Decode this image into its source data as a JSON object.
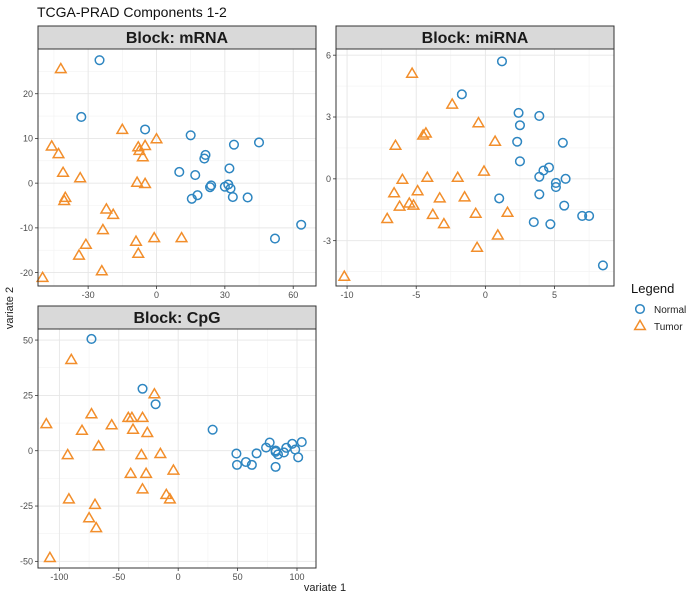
{
  "figure": {
    "title": "TCGA-PRAD Components 1-2",
    "xlabel": "variate 1",
    "ylabel": "variate 2"
  },
  "legend": {
    "title": "Legend",
    "items": [
      {
        "label": "Normal",
        "shape": "circle",
        "color": "#2E86C1"
      },
      {
        "label": "Tumor",
        "shape": "triangle",
        "color": "#F28E2B"
      }
    ]
  },
  "chart_data": [
    {
      "type": "scatter",
      "title": "Block: mRNA",
      "xlim": [
        -52,
        70
      ],
      "ylim": [
        -23,
        30
      ],
      "xticks": [
        -30,
        0,
        30,
        60
      ],
      "yticks": [
        -20,
        -10,
        0,
        10,
        20
      ],
      "grid": true,
      "series": [
        {
          "name": "Normal",
          "points": [
            [
              -25,
              27.5
            ],
            [
              -33,
              14.8
            ],
            [
              -5,
              12
            ],
            [
              15,
              10.7
            ],
            [
              21,
              5.5
            ],
            [
              21.5,
              6.3
            ],
            [
              10,
              2.5
            ],
            [
              17,
              1.8
            ],
            [
              24,
              -0.5
            ],
            [
              23.5,
              -0.9
            ],
            [
              30,
              -0.8
            ],
            [
              31.5,
              -0.3
            ],
            [
              32.5,
              -1.2
            ],
            [
              33.5,
              -3.1
            ],
            [
              18,
              -2.7
            ],
            [
              15.5,
              -3.5
            ],
            [
              32,
              3.3
            ],
            [
              34,
              8.6
            ],
            [
              45,
              9.1
            ],
            [
              40,
              -3.2
            ],
            [
              52,
              -12.4
            ],
            [
              63.5,
              -9.3
            ]
          ]
        },
        {
          "name": "Tumor",
          "points": [
            [
              -42,
              25.5
            ],
            [
              -46,
              8.2
            ],
            [
              -43,
              6.5
            ],
            [
              -41,
              2.3
            ],
            [
              -40,
              -3.3
            ],
            [
              -40.5,
              -4
            ],
            [
              -33.5,
              1.1
            ],
            [
              -15,
              11.9
            ],
            [
              -8,
              8
            ],
            [
              -7.5,
              7.2
            ],
            [
              -6,
              5.8
            ],
            [
              -5,
              -0.2
            ],
            [
              0,
              9.8
            ],
            [
              -8.5,
              0.1
            ],
            [
              -22,
              -5.9
            ],
            [
              -19,
              -7.1
            ],
            [
              -5,
              8.3
            ],
            [
              -1,
              -12.3
            ],
            [
              11,
              -12.3
            ],
            [
              -23.5,
              -10.5
            ],
            [
              -31,
              -13.8
            ],
            [
              -34,
              -16.2
            ],
            [
              -9,
              -13.1
            ],
            [
              -8,
              -15.8
            ],
            [
              -24,
              -19.7
            ],
            [
              -50,
              -21.2
            ]
          ]
        }
      ]
    },
    {
      "type": "scatter",
      "title": "Block: miRNA",
      "xlim": [
        -10.8,
        9.3
      ],
      "ylim": [
        -5.2,
        6.3
      ],
      "xticks": [
        -10,
        -5,
        0,
        5
      ],
      "yticks": [
        -3,
        0,
        3,
        6
      ],
      "grid": true,
      "series": [
        {
          "name": "Normal",
          "points": [
            [
              1.2,
              5.7
            ],
            [
              -1.7,
              4.1
            ],
            [
              2.4,
              3.2
            ],
            [
              2.5,
              2.6
            ],
            [
              3.9,
              3.05
            ],
            [
              2.3,
              1.8
            ],
            [
              5.6,
              1.75
            ],
            [
              2.5,
              0.85
            ],
            [
              4.6,
              0.55
            ],
            [
              4.2,
              0.4
            ],
            [
              3.9,
              0.1
            ],
            [
              5.1,
              -0.2
            ],
            [
              5.1,
              -0.4
            ],
            [
              5.8,
              0
            ],
            [
              3.9,
              -0.75
            ],
            [
              1,
              -0.95
            ],
            [
              5.7,
              -1.3
            ],
            [
              7,
              -1.8
            ],
            [
              7.5,
              -1.8
            ],
            [
              3.5,
              -2.1
            ],
            [
              4.7,
              -2.2
            ],
            [
              8.5,
              -4.2
            ]
          ]
        },
        {
          "name": "Tumor",
          "points": [
            [
              -5.3,
              5.1
            ],
            [
              -2.4,
              3.6
            ],
            [
              -0.5,
              2.7
            ],
            [
              -4.3,
              2.2
            ],
            [
              -4.5,
              2.1
            ],
            [
              0.7,
              1.8
            ],
            [
              -6.5,
              1.6
            ],
            [
              -2,
              0.05
            ],
            [
              -4.2,
              0.05
            ],
            [
              -0.1,
              0.35
            ],
            [
              -6,
              -0.05
            ],
            [
              -4.9,
              -0.6
            ],
            [
              -6.6,
              -0.7
            ],
            [
              -1.5,
              -0.9
            ],
            [
              -3.3,
              -0.95
            ],
            [
              -5.5,
              -1.2
            ],
            [
              -5.2,
              -1.3
            ],
            [
              -6.2,
              -1.35
            ],
            [
              1.6,
              -1.65
            ],
            [
              -0.7,
              -1.7
            ],
            [
              -3.8,
              -1.75
            ],
            [
              -7.1,
              -1.95
            ],
            [
              -3,
              -2.2
            ],
            [
              0.9,
              -2.75
            ],
            [
              -0.6,
              -3.35
            ],
            [
              -10.2,
              -4.75
            ]
          ]
        }
      ]
    },
    {
      "type": "scatter",
      "title": "Block: CpG",
      "xlim": [
        -118,
        116
      ],
      "ylim": [
        -53,
        55
      ],
      "xticks": [
        -100,
        -50,
        0,
        50,
        100
      ],
      "yticks": [
        -50,
        -25,
        0,
        25,
        50
      ],
      "grid": true,
      "series": [
        {
          "name": "Normal",
          "points": [
            [
              -73,
              50.5
            ],
            [
              -30,
              28
            ],
            [
              -19,
              21
            ],
            [
              29,
              9.5
            ],
            [
              49,
              -1.3
            ],
            [
              49.5,
              -6.4
            ],
            [
              57,
              -5.1
            ],
            [
              62,
              -6.4
            ],
            [
              66,
              -1.2
            ],
            [
              74,
              1.4
            ],
            [
              77,
              3.7
            ],
            [
              82,
              -0.5
            ],
            [
              82,
              0.1
            ],
            [
              84,
              -1.7
            ],
            [
              89,
              -0.8
            ],
            [
              91,
              1.3
            ],
            [
              96,
              3.1
            ],
            [
              98.5,
              0.5
            ],
            [
              104,
              3.9
            ],
            [
              82,
              -7.3
            ],
            [
              101,
              -3
            ]
          ]
        },
        {
          "name": "Tumor",
          "points": [
            [
              -90,
              41
            ],
            [
              -111,
              12
            ],
            [
              -81,
              9
            ],
            [
              -73,
              16.5
            ],
            [
              -67,
              2
            ],
            [
              -56,
              11.5
            ],
            [
              -42,
              14.8
            ],
            [
              -39,
              14.8
            ],
            [
              -30,
              14.8
            ],
            [
              -26,
              8
            ],
            [
              -20,
              25.5
            ],
            [
              -38,
              9.5
            ],
            [
              -93,
              -2
            ],
            [
              -31,
              -2
            ],
            [
              -15,
              -1.5
            ],
            [
              -4,
              -9
            ],
            [
              -40,
              -10.5
            ],
            [
              -27,
              -10.5
            ],
            [
              -92,
              -22
            ],
            [
              -10,
              -20
            ],
            [
              -7,
              -22
            ],
            [
              -70,
              -24.5
            ],
            [
              -30,
              -17.5
            ],
            [
              -75,
              -30.5
            ],
            [
              -69,
              -35
            ],
            [
              -108,
              -48.5
            ]
          ]
        }
      ]
    }
  ]
}
